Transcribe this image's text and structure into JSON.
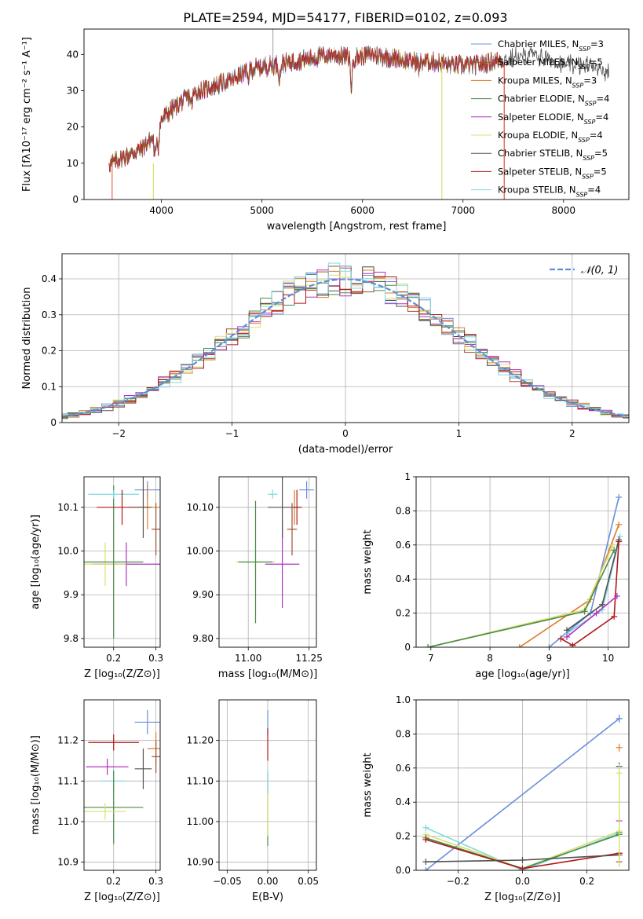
{
  "figure_title": "PLATE=2594, MJD=54177, FIBERID=0102, z=0.093",
  "models": [
    {
      "name": "Chabrier MILES",
      "nssp": "3",
      "color": "#6a8fdc"
    },
    {
      "name": "Salpeter MILES",
      "nssp": "5",
      "color": "#a05030"
    },
    {
      "name": "Kroupa MILES",
      "nssp": "3",
      "color": "#e07b28"
    },
    {
      "name": "Chabrier ELODIE",
      "nssp": "4",
      "color": "#4a8a4a"
    },
    {
      "name": "Salpeter ELODIE",
      "nssp": "4",
      "color": "#b030c0"
    },
    {
      "name": "Kroupa ELODIE",
      "nssp": "4",
      "color": "#d8e070"
    },
    {
      "name": "Chabrier STELIB",
      "nssp": "5",
      "color": "#505050"
    },
    {
      "name": "Salpeter STELIB",
      "nssp": "5",
      "color": "#b01818"
    },
    {
      "name": "Kroupa STELIB",
      "nssp": "4",
      "color": "#80d8e0"
    }
  ],
  "chart_data": [
    {
      "id": "spectrum",
      "type": "line",
      "xlabel": "wavelength [Angstrom, rest frame]",
      "ylabel": "Flux [fλ10⁻¹⁷ erg cm⁻² s⁻¹ A⁻¹]",
      "xlim": [
        3230,
        8650
      ],
      "ylim": [
        0,
        47
      ],
      "xticks": [
        4000,
        5000,
        6000,
        7000,
        8000
      ],
      "yticks": [
        0,
        10,
        20,
        30,
        40
      ],
      "continuum": [
        [
          3500,
          10
        ],
        [
          3650,
          12
        ],
        [
          3800,
          14
        ],
        [
          3950,
          18
        ],
        [
          4000,
          22
        ],
        [
          4150,
          26
        ],
        [
          4300,
          29
        ],
        [
          4500,
          31
        ],
        [
          4700,
          33
        ],
        [
          4900,
          36
        ],
        [
          5100,
          37
        ],
        [
          5300,
          38
        ],
        [
          5500,
          39
        ],
        [
          5700,
          40
        ],
        [
          5900,
          39
        ],
        [
          6100,
          40
        ],
        [
          6300,
          39
        ],
        [
          6500,
          38
        ],
        [
          6700,
          38
        ],
        [
          6900,
          37
        ],
        [
          7100,
          37
        ],
        [
          7300,
          38
        ],
        [
          7500,
          39
        ],
        [
          7700,
          40
        ],
        [
          7900,
          38
        ],
        [
          8100,
          37
        ],
        [
          8300,
          37
        ],
        [
          8450,
          35
        ]
      ],
      "features": [
        [
          3935,
          -6
        ],
        [
          3970,
          -5
        ],
        [
          4300,
          -3
        ],
        [
          4861,
          -2
        ],
        [
          5175,
          -4
        ],
        [
          5890,
          -8
        ],
        [
          6563,
          -2
        ]
      ]
    },
    {
      "id": "residuals",
      "type": "histogram",
      "xlabel": "(data-model)/error",
      "ylabel": "Normed distribution",
      "xlim": [
        -2.5,
        2.5
      ],
      "ylim": [
        0,
        0.47
      ],
      "xticks": [
        -2,
        -1,
        0,
        1,
        2
      ],
      "yticks": [
        0.0,
        0.1,
        0.2,
        0.3,
        0.4
      ],
      "bin_width": 0.1,
      "legend": "𝒩(0, 1)"
    },
    {
      "id": "z_age",
      "type": "scatter",
      "xlabel": "Z [log₁₀(Z/Z⊙)]",
      "ylabel": "age  [log₁₀(age/yr)]",
      "xlim": [
        0.13,
        0.31
      ],
      "ylim": [
        9.78,
        10.17
      ],
      "xticks": [
        0.2,
        0.3
      ],
      "yticks": [
        9.8,
        9.9,
        10.0,
        10.1
      ],
      "points": [
        {
          "m": 0,
          "x": 0.28,
          "y": 10.14,
          "ex": 0.03,
          "ey": 0.02
        },
        {
          "m": 2,
          "x": 0.28,
          "y": 10.1,
          "ex": 0.04,
          "ey": 0.05
        },
        {
          "m": 4,
          "x": 0.23,
          "y": 9.97,
          "ex": 0.08,
          "ey": 0.05
        },
        {
          "m": 5,
          "x": 0.18,
          "y": 9.97,
          "ex": 0.05,
          "ey": 0.05
        },
        {
          "m": 3,
          "x": 0.2,
          "y": 9.975,
          "ex": 0.07,
          "ey": 0.175
        },
        {
          "m": 8,
          "x": 0.2,
          "y": 10.13,
          "ex": 0.06,
          "ey": 0.01
        },
        {
          "m": 7,
          "x": 0.22,
          "y": 10.1,
          "ex": 0.06,
          "ey": 0.04
        },
        {
          "m": 6,
          "x": 0.27,
          "y": 10.1,
          "ex": 0.02,
          "ey": 0.07
        },
        {
          "m": 1,
          "x": 0.3,
          "y": 10.05,
          "ex": 0.01,
          "ey": 0.06
        }
      ]
    },
    {
      "id": "mass_age",
      "type": "scatter",
      "xlabel": "mass [log₁₀(M/M⊙)]",
      "ylabel": "",
      "xlim": [
        10.88,
        11.28
      ],
      "ylim": [
        9.78,
        10.17
      ],
      "xticks": [
        11.0,
        11.25
      ],
      "yticks": [
        9.8,
        9.9,
        10.0,
        10.1
      ],
      "points": [
        {
          "m": 0,
          "x": 11.24,
          "y": 10.14,
          "ex": 0.03,
          "ey": 0.02
        },
        {
          "m": 2,
          "x": 11.19,
          "y": 10.1,
          "ex": 0.02,
          "ey": 0.04
        },
        {
          "m": 4,
          "x": 11.14,
          "y": 9.97,
          "ex": 0.07,
          "ey": 0.1
        },
        {
          "m": 5,
          "x": 11.03,
          "y": 9.975,
          "ex": 0.08,
          "ey": 0.04
        },
        {
          "m": 3,
          "x": 11.03,
          "y": 9.975,
          "ex": 0.07,
          "ey": 0.14
        },
        {
          "m": 8,
          "x": 11.1,
          "y": 10.13,
          "ex": 0.02,
          "ey": 0.01
        },
        {
          "m": 7,
          "x": 11.2,
          "y": 10.1,
          "ex": 0.02,
          "ey": 0.04
        },
        {
          "m": 6,
          "x": 11.14,
          "y": 10.1,
          "ex": 0.06,
          "ey": 0.07
        },
        {
          "m": 1,
          "x": 11.18,
          "y": 10.05,
          "ex": 0.02,
          "ey": 0.06
        }
      ]
    },
    {
      "id": "age_weight",
      "type": "line",
      "xlabel": "age  [log₁₀(age/yr)]",
      "ylabel": "mass weight",
      "xlim": [
        6.75,
        10.35
      ],
      "ylim": [
        0,
        1
      ],
      "xticks": [
        7,
        8,
        9,
        10
      ],
      "yticks": [
        0.0,
        0.2,
        0.4,
        0.6,
        0.8,
        1.0
      ],
      "series": [
        {
          "m": 0,
          "x": [
            9.0,
            9.7,
            10.18
          ],
          "y": [
            0.0,
            0.2,
            0.88
          ]
        },
        {
          "m": 2,
          "x": [
            8.5,
            9.7,
            10.18
          ],
          "y": [
            0.0,
            0.28,
            0.72
          ]
        },
        {
          "m": 5,
          "x": [
            6.95,
            9.6,
            10.08
          ],
          "y": [
            0.0,
            0.22,
            0.6
          ]
        },
        {
          "m": 3,
          "x": [
            6.95,
            9.6,
            10.1
          ],
          "y": [
            0.0,
            0.21,
            0.57
          ]
        },
        {
          "m": 8,
          "x": [
            9.3,
            9.9,
            10.2
          ],
          "y": [
            0.08,
            0.22,
            0.65
          ]
        },
        {
          "m": 6,
          "x": [
            9.3,
            9.9,
            10.18
          ],
          "y": [
            0.1,
            0.25,
            0.63
          ]
        },
        {
          "m": 7,
          "x": [
            9.2,
            9.4,
            10.1,
            10.18
          ],
          "y": [
            0.05,
            0.01,
            0.18,
            0.62
          ]
        },
        {
          "m": 4,
          "x": [
            9.3,
            9.8,
            10.15
          ],
          "y": [
            0.06,
            0.2,
            0.3
          ]
        }
      ]
    },
    {
      "id": "z_mass",
      "type": "scatter",
      "xlabel": "Z [log₁₀(Z/Z⊙)]",
      "ylabel": "mass [log₁₀(M/M⊙)]",
      "xlim": [
        0.13,
        0.31
      ],
      "ylim": [
        10.88,
        11.3
      ],
      "xticks": [
        0.2,
        0.3
      ],
      "yticks": [
        10.9,
        11.0,
        11.1,
        11.2
      ],
      "points": [
        {
          "m": 0,
          "x": 0.28,
          "y": 11.245,
          "ex": 0.03,
          "ey": 0.03
        },
        {
          "m": 2,
          "x": 0.3,
          "y": 11.18,
          "ex": 0.02,
          "ey": 0.04
        },
        {
          "m": 7,
          "x": 0.2,
          "y": 11.195,
          "ex": 0.06,
          "ey": 0.02
        },
        {
          "m": 4,
          "x": 0.185,
          "y": 11.135,
          "ex": 0.05,
          "ey": 0.02
        },
        {
          "m": 6,
          "x": 0.27,
          "y": 11.13,
          "ex": 0.02,
          "ey": 0.05
        },
        {
          "m": 8,
          "x": 0.2,
          "y": 11.1,
          "ex": 0.03,
          "ey": 0.03
        },
        {
          "m": 3,
          "x": 0.2,
          "y": 11.035,
          "ex": 0.07,
          "ey": 0.09
        },
        {
          "m": 5,
          "x": 0.18,
          "y": 11.025,
          "ex": 0.05,
          "ey": 0.02
        },
        {
          "m": 1,
          "x": 0.3,
          "y": 11.16,
          "ex": 0.01,
          "ey": 0.04
        }
      ]
    },
    {
      "id": "ebv_mass",
      "type": "scatter",
      "xlabel": "E(B-V)",
      "ylabel": "",
      "xlim": [
        -0.06,
        0.06
      ],
      "ylim": [
        10.88,
        11.3
      ],
      "xticks": [
        -0.05,
        0.0,
        0.05
      ],
      "yticks": [
        10.9,
        11.0,
        11.1,
        11.2
      ],
      "points": [
        {
          "m": 0,
          "x": 0.0,
          "y": 11.245,
          "ex": 0,
          "ey": 0.03
        },
        {
          "m": 7,
          "x": 0.0,
          "y": 11.19,
          "ex": 0,
          "ey": 0.04
        },
        {
          "m": 3,
          "x": 0.0,
          "y": 11.03,
          "ex": 0,
          "ey": 0.09
        },
        {
          "m": 5,
          "x": 0.0,
          "y": 11.025,
          "ex": 0,
          "ey": 0.06
        },
        {
          "m": 8,
          "x": 0.0,
          "y": 11.1,
          "ex": 0,
          "ey": 0.03
        }
      ]
    },
    {
      "id": "z_weight",
      "type": "line",
      "xlabel": "Z [log₁₀(Z/Z⊙)]",
      "ylabel": "mass weight",
      "xlim": [
        -0.33,
        0.33
      ],
      "ylim": [
        0,
        1
      ],
      "xticks": [
        -0.2,
        0.0,
        0.2
      ],
      "yticks": [
        0.0,
        0.2,
        0.4,
        0.6,
        0.8,
        1.0
      ],
      "series": [
        {
          "m": 0,
          "x": [
            -0.3,
            0.3
          ],
          "y": [
            0.0,
            0.89
          ]
        },
        {
          "m": 8,
          "x": [
            -0.3,
            0.0,
            0.3
          ],
          "y": [
            0.25,
            0.0,
            0.22
          ]
        },
        {
          "m": 5,
          "x": [
            -0.3,
            0.0,
            0.3
          ],
          "y": [
            0.21,
            0.01,
            0.23
          ]
        },
        {
          "m": 3,
          "x": [
            -0.3,
            0.0,
            0.3
          ],
          "y": [
            0.19,
            0.01,
            0.21
          ]
        },
        {
          "m": 7,
          "x": [
            -0.3,
            0.0,
            0.3
          ],
          "y": [
            0.18,
            0.01,
            0.1
          ]
        },
        {
          "m": 6,
          "x": [
            -0.3,
            0.0,
            0.3
          ],
          "y": [
            0.05,
            0.06,
            0.09
          ]
        }
      ],
      "markers_at_0_3": [
        0.89,
        0.72,
        0.61,
        0.6,
        0.57,
        0.29,
        0.22,
        0.1,
        0.05
      ]
    }
  ]
}
